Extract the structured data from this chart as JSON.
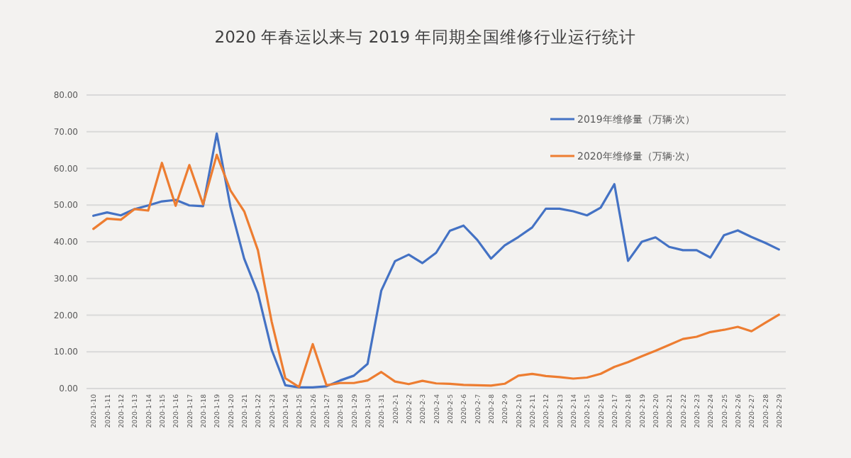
{
  "chart_data": {
    "type": "line",
    "title": "2020 年春运以来与 2019 年同期全国维修行业运行统计",
    "categories": [
      "2020-1-10",
      "2020-1-11",
      "2020-1-12",
      "2020-1-13",
      "2020-1-14",
      "2020-1-15",
      "2020-1-16",
      "2020-1-17",
      "2020-1-18",
      "2020-1-19",
      "2020-1-20",
      "2020-1-21",
      "2020-1-22",
      "2020-1-23",
      "2020-1-24",
      "2020-1-25",
      "2020-1-26",
      "2020-1-27",
      "2020-1-28",
      "2020-1-29",
      "2020-1-30",
      "2020-1-31",
      "2020-2-1",
      "2020-2-2",
      "2020-2-3",
      "2020-2-4",
      "2020-2-5",
      "2020-2-6",
      "2020-2-7",
      "2020-2-8",
      "2020-2-9",
      "2020-2-10",
      "2020-2-11",
      "2020-2-12",
      "2020-2-13",
      "2020-2-14",
      "2020-2-15",
      "2020-2-16",
      "2020-2-17",
      "2020-2-18",
      "2020-2-19",
      "2020-2-20",
      "2020-2-21",
      "2020-2-22",
      "2020-2-23",
      "2020-2-24",
      "2020-2-25",
      "2020-2-26",
      "2020-2-27",
      "2020-2-28",
      "2020-2-29"
    ],
    "series": [
      {
        "name": "2019年维修量（万辆·次）",
        "color": "#4472c4",
        "values": [
          47.1,
          48,
          47.2,
          48.9,
          49.9,
          51,
          51.4,
          49.9,
          49.7,
          69.5,
          49.5,
          35.4,
          26,
          10.6,
          0.9,
          0.3,
          0.3,
          0.6,
          2.2,
          3.5,
          6.7,
          26.7,
          34.7,
          36.5,
          34.2,
          37,
          43,
          44.4,
          40.5,
          35.4,
          39,
          41.3,
          43.9,
          49,
          49,
          48.3,
          47.2,
          49.3,
          55.7,
          34.8,
          40,
          41.2,
          38.6,
          37.7,
          37.7,
          35.7,
          41.8,
          43.1,
          41.3,
          39.7,
          37.9
        ]
      },
      {
        "name": "2020年维修量（万辆·次）",
        "color": "#ed7d31",
        "values": [
          43.5,
          46.3,
          46,
          48.9,
          48.5,
          61.5,
          49.8,
          60.9,
          50.2,
          63.7,
          54,
          48.3,
          37.7,
          18.3,
          2.8,
          0.4,
          12.1,
          0.9,
          1.5,
          1.5,
          2.2,
          4.5,
          1.9,
          1.2,
          2.1,
          1.4,
          1.3,
          1,
          0.9,
          0.8,
          1.3,
          3.5,
          4,
          3.4,
          3.1,
          2.7,
          3,
          4,
          5.9,
          7.2,
          8.8,
          10.3,
          11.9,
          13.5,
          14.1,
          15.4,
          16,
          16.8,
          15.6,
          17.9,
          20.1
        ]
      }
    ],
    "ylim": [
      0,
      80
    ],
    "yticks": [
      {
        "value": 0,
        "label": "0.00"
      },
      {
        "value": 10,
        "label": "10.00"
      },
      {
        "value": 20,
        "label": "20.00"
      },
      {
        "value": 30,
        "label": "30.00"
      },
      {
        "value": 40,
        "label": "40.00"
      },
      {
        "value": 50,
        "label": "50.00"
      },
      {
        "value": 60,
        "label": "60.00"
      },
      {
        "value": 70,
        "label": "70.00"
      },
      {
        "value": 80,
        "label": "80.00"
      }
    ],
    "grid": "y",
    "legend": "top right",
    "marker": "none",
    "line_style": "solid"
  }
}
